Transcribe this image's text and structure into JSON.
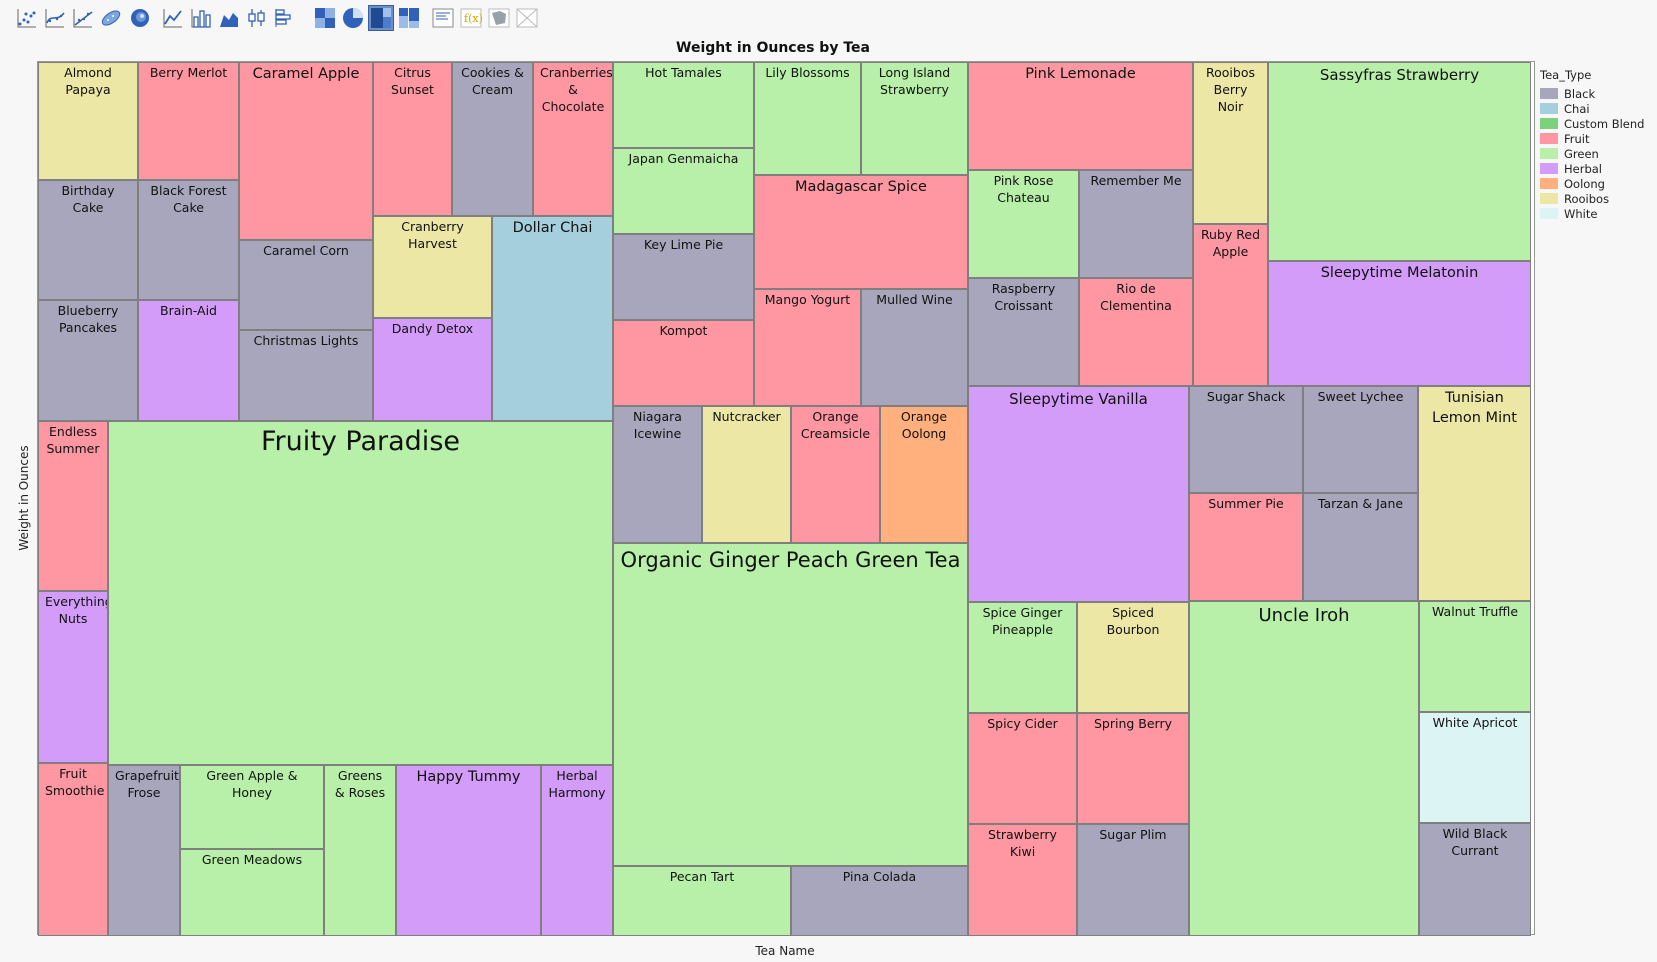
{
  "toolbar": [
    {
      "name": "points-icon",
      "selected": false
    },
    {
      "name": "smoother-icon",
      "selected": false
    },
    {
      "name": "line-of-fit-icon",
      "selected": false
    },
    {
      "name": "ellipse-icon",
      "selected": false
    },
    {
      "name": "contour-icon",
      "selected": false
    },
    {
      "name": "line-icon",
      "selected": false
    },
    {
      "name": "bar-icon",
      "selected": false
    },
    {
      "name": "area-icon",
      "selected": false
    },
    {
      "name": "box-plot-icon",
      "selected": false
    },
    {
      "name": "histogram-icon",
      "selected": false
    },
    {
      "name": "heatmap-icon",
      "selected": false
    },
    {
      "name": "pie-icon",
      "selected": false
    },
    {
      "name": "treemap-icon",
      "selected": true
    },
    {
      "name": "mosaic-icon",
      "selected": false
    },
    {
      "name": "caption-box-icon",
      "selected": false
    },
    {
      "name": "formula-icon",
      "selected": false
    },
    {
      "name": "map-shapes-icon",
      "selected": false
    },
    {
      "name": "empty-icon",
      "selected": false
    }
  ],
  "chart_data": {
    "type": "treemap",
    "title": "Weight in Ounces by Tea",
    "xlabel": "Tea Name",
    "ylabel": "Weight in Ounces",
    "legend": {
      "title": "Tea_Type",
      "position": "right",
      "items": [
        {
          "label": "Black",
          "color": "#a8a6bd"
        },
        {
          "label": "Chai",
          "color": "#a5cfdc"
        },
        {
          "label": "Custom Blend",
          "color": "#7cd27c"
        },
        {
          "label": "Fruit",
          "color": "#ff97a2"
        },
        {
          "label": "Green",
          "color": "#b8f0a9"
        },
        {
          "label": "Herbal",
          "color": "#d29cf8"
        },
        {
          "label": "Oolong",
          "color": "#ffb07d"
        },
        {
          "label": "Rooibos",
          "color": "#ece7a5"
        },
        {
          "label": "White",
          "color": "#ddf4f5"
        }
      ]
    },
    "cells": [
      {
        "name": "Almond Papaya",
        "type": "Rooibos",
        "weight": 126.4
      },
      {
        "name": "Berry Merlot",
        "type": "Fruit",
        "weight": 120.9
      },
      {
        "name": "Caramel Apple",
        "type": "Fruit",
        "weight": 219.4
      },
      {
        "name": "Citrus Sunset",
        "type": "Fruit",
        "weight": 104.9
      },
      {
        "name": "Cookies & Cream",
        "type": "Black",
        "weight": 104.9
      },
      {
        "name": "Cranberries & Chocolate",
        "type": "Fruit",
        "weight": 104.9
      },
      {
        "name": "Birthday Cake",
        "type": "Black",
        "weight": 126.4
      },
      {
        "name": "Black Forest Cake",
        "type": "Black",
        "weight": 125.1
      },
      {
        "name": "Blueberry Pancakes",
        "type": "Black",
        "weight": 126.3
      },
      {
        "name": "Brain-Aid",
        "type": "Herbal",
        "weight": 121.0
      },
      {
        "name": "Caramel Corn",
        "type": "Black",
        "weight": 113.8
      },
      {
        "name": "Christmas Lights",
        "type": "Black",
        "weight": 109.2
      },
      {
        "name": "Cranberry Harvest",
        "type": "Rooibos",
        "weight": 114.6
      },
      {
        "name": "Dandy Detox",
        "type": "Herbal",
        "weight": 114.3
      },
      {
        "name": "Dollar Chai",
        "type": "Chai",
        "weight": 226.9
      },
      {
        "name": "Endless Summer",
        "type": "Fruit",
        "weight": 112.1
      },
      {
        "name": "Everything Nuts",
        "type": "Herbal",
        "weight": 113.4
      },
      {
        "name": "Fruit Smoothie",
        "type": "Fruit",
        "weight": 113.4
      },
      {
        "name": "Fruity Paradise",
        "type": "Green",
        "weight": 1177.1
      },
      {
        "name": "Grapefruit Frose",
        "type": "Black",
        "weight": 114.9
      },
      {
        "name": "Green Apple & Honey",
        "type": "Green",
        "weight": 113.5
      },
      {
        "name": "Green Meadows",
        "type": "Green",
        "weight": 114.0
      },
      {
        "name": "Greens & Roses",
        "type": "Green",
        "weight": 114.9
      },
      {
        "name": "Happy Tummy",
        "type": "Herbal",
        "weight": 228.9
      },
      {
        "name": "Herbal Harmony",
        "type": "Herbal",
        "weight": 114.9
      },
      {
        "name": "Hot Tamales",
        "type": "Green",
        "weight": 113.7
      },
      {
        "name": "Japan Genmaicha",
        "type": "Green",
        "weight": 113.7
      },
      {
        "name": "Key Lime Pie",
        "type": "Black",
        "weight": 113.7
      },
      {
        "name": "Kompot",
        "type": "Fruit",
        "weight": 113.7
      },
      {
        "name": "Lily Blossoms",
        "type": "Green",
        "weight": 111.3
      },
      {
        "name": "Long Island Strawberry",
        "type": "Green",
        "weight": 111.3
      },
      {
        "name": "Madagascar Spice",
        "type": "Fruit",
        "weight": 223.6
      },
      {
        "name": "Mango Yogurt",
        "type": "Fruit",
        "weight": 114.6
      },
      {
        "name": "Mulled Wine",
        "type": "Black",
        "weight": 114.6
      },
      {
        "name": "Niagara Icewine",
        "type": "Black",
        "weight": 114.2
      },
      {
        "name": "Nutcracker",
        "type": "Rooibos",
        "weight": 114.2
      },
      {
        "name": "Orange Creamsicle",
        "type": "Fruit",
        "weight": 114.2
      },
      {
        "name": "Orange Oolong",
        "type": "Oolong",
        "weight": 114.2
      },
      {
        "name": "Organic Ginger Peach Green Tea",
        "type": "Green",
        "weight": 690.0
      },
      {
        "name": "Pecan Tart",
        "type": "Green",
        "weight": 117.0
      },
      {
        "name": "Pina Colada",
        "type": "Black",
        "weight": 117.0
      },
      {
        "name": "Pink Lemonade",
        "type": "Fruit",
        "weight": 224.2
      },
      {
        "name": "Pink Rose Chateau",
        "type": "Green",
        "weight": 114.2
      },
      {
        "name": "Remember Me",
        "type": "Black",
        "weight": 114.2
      },
      {
        "name": "Raspberry Croissant",
        "type": "Black",
        "weight": 113.1
      },
      {
        "name": "Rio de Clementina",
        "type": "Fruit",
        "weight": 113.1
      },
      {
        "name": "Rooibos Berry Noir",
        "type": "Rooibos",
        "weight": 115.5
      },
      {
        "name": "Ruby Red Apple",
        "type": "Fruit",
        "weight": 114.8
      },
      {
        "name": "Sassyfras Strawberry",
        "type": "Green",
        "weight": 350.3
      },
      {
        "name": "Sleepytime Melatonin",
        "type": "Herbal",
        "weight": 221.6
      },
      {
        "name": "Sleepytime Vanilla",
        "type": "Herbal",
        "weight": 460.7
      },
      {
        "name": "Spice Ginger Pineapple",
        "type": "Green",
        "weight": 116.4
      },
      {
        "name": "Spiced Bourbon",
        "type": "Rooibos",
        "weight": 116.4
      },
      {
        "name": "Spicy Cider",
        "type": "Fruit",
        "weight": 116.4
      },
      {
        "name": "Spring Berry",
        "type": "Fruit",
        "weight": 116.4
      },
      {
        "name": "Strawberry Kiwi",
        "type": "Fruit",
        "weight": 116.4
      },
      {
        "name": "Sugar Plim",
        "type": "Black",
        "weight": 116.4
      },
      {
        "name": "Sugar Shack",
        "type": "Black",
        "weight": 116.0
      },
      {
        "name": "Sweet Lychee",
        "type": "Black",
        "weight": 116.0
      },
      {
        "name": "Summer Pie",
        "type": "Fruit",
        "weight": 116.0
      },
      {
        "name": "Tarzan & Jane",
        "type": "Black",
        "weight": 116.0
      },
      {
        "name": "Tunisian Lemon Mint",
        "type": "Rooibos",
        "weight": 232.0
      },
      {
        "name": "Uncle Iroh",
        "type": "Green",
        "weight": 733.0
      },
      {
        "name": "Walnut Truffle",
        "type": "Green",
        "weight": 115.2
      },
      {
        "name": "White Apricot",
        "type": "White",
        "weight": 115.2
      },
      {
        "name": "Wild Black Currant",
        "type": "Black",
        "weight": 115.2
      }
    ]
  }
}
